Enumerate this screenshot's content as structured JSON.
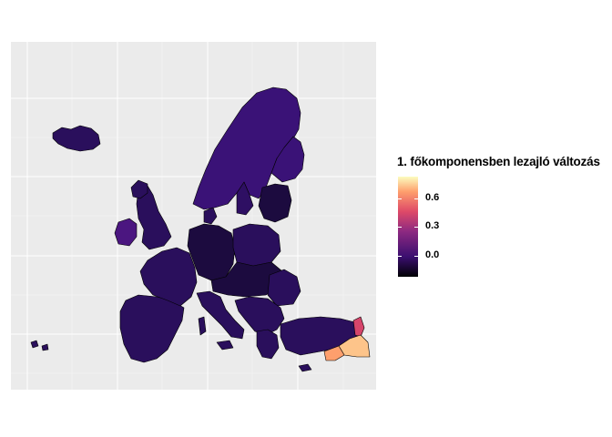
{
  "map": {
    "legend": {
      "title": "1. főkomponensben lezajló változás",
      "ticks": [
        "0.6",
        "0.3",
        "0.0"
      ],
      "colorscale": [
        "#000004",
        "#3b0f70",
        "#8c2981",
        "#de4968",
        "#fe9f6d",
        "#fcfdbf"
      ]
    },
    "region_colors": {
      "base": "#2a0f5c",
      "dark": "#1c0b3f",
      "nordic": "#3a1277",
      "uk_west": "#4b1680",
      "east_bright": "#d6456b",
      "southeast_bright": "#fdc48a",
      "southeast_mid": "#fe9f6d"
    }
  }
}
